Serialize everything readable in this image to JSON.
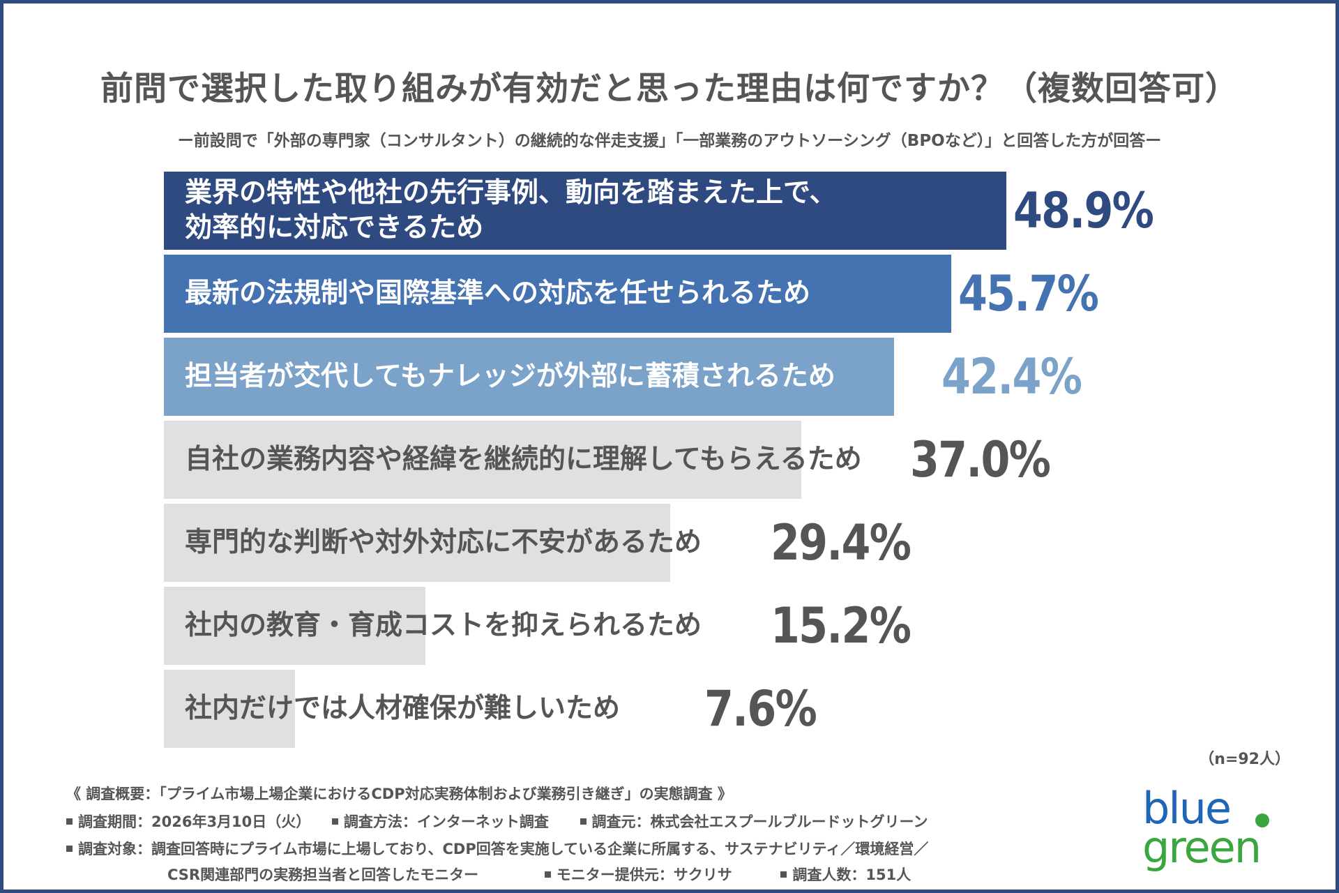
{
  "colors": {
    "frame": "#2f4a80",
    "bar_dark": "#2f4a80",
    "bar_mid": "#4572b0",
    "bar_light": "#7ba2c9",
    "bar_gray": "#e0e0e0",
    "text_gray": "#555555",
    "logo_blue": "#1f66b7",
    "logo_green": "#3aa640"
  },
  "chart_data": {
    "type": "bar",
    "orientation": "horizontal",
    "title": "前問で選択した取り組みが有効だと思った理由は何ですか？（複数回答可）",
    "subtitle": "ー前設問で「外部の専門家（コンサルタント）の継続的な伴走支援」「一部業務のアウトソーシング（BPOなど）」と回答した方が回答ー",
    "categories": [
      "業界の特性や他社の先行事例、動向を踏まえた上で、\n効率的に対応できるため",
      "最新の法規制や国際基準への対応を任せられるため",
      "担当者が交代してもナレッジが外部に蓄積されるため",
      "自社の業務内容や経緯を継続的に理解してもらえるため",
      "専門的な判断や対外対応に不安があるため",
      "社内の教育・育成コストを抑えられるため",
      "社内だけでは人材確保が難しいため"
    ],
    "values": [
      48.9,
      45.7,
      42.4,
      37.0,
      29.4,
      15.2,
      7.6
    ],
    "value_labels": [
      "48.9%",
      "45.7%",
      "42.4%",
      "37.0%",
      "29.4%",
      "15.2%",
      "7.6%"
    ],
    "unit": "%",
    "xlim": [
      0,
      60
    ],
    "grid": false,
    "legend": "none",
    "sample_note": "（n=92人）"
  },
  "footer": {
    "overview": "《 調査概要：「プライム市場上場企業におけるCDP対応実務体制および業務引き継ぎ」の実態調査 》",
    "period": "調査期間：2026年3月10日（火）",
    "method": "調査方法：インターネット調査",
    "organizer": "調査元：株式会社エスプールブルードットグリーン",
    "target_line1": "調査対象：調査回答時にプライム市場に上場しており、CDP回答を実施している企業に所属する、サステナビリティ／環境経営／",
    "target_line2": "CSR関連部門の実務担当者と回答したモニター",
    "provider": "モニター提供元：サクリサ",
    "respondents": "調査人数：151人"
  },
  "logo": {
    "line1": "blue",
    "line2": "green"
  }
}
